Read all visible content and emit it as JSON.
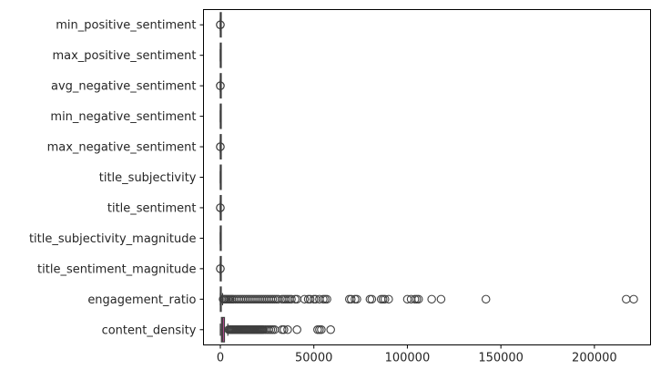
{
  "chart_data": {
    "type": "box",
    "orientation": "horizontal",
    "title": "",
    "xlabel": "",
    "ylabel": "",
    "xlim": [
      -9000,
      230000
    ],
    "x_ticks": [
      0,
      50000,
      100000,
      150000,
      200000
    ],
    "x_tick_labels": [
      "0",
      "50000",
      "100000",
      "150000",
      "200000"
    ],
    "grid": false,
    "categories": [
      "min_positive_sentiment",
      "max_positive_sentiment",
      "avg_negative_sentiment",
      "min_negative_sentiment",
      "max_negative_sentiment",
      "title_subjectivity",
      "title_sentiment",
      "title_subjectivity_magnitude",
      "title_sentiment_magnitude",
      "engagement_ratio",
      "content_density"
    ],
    "colors": [
      "#4c72b0",
      "#dd8452",
      "#55a868",
      "#c44e52",
      "#8172b3",
      "#937860",
      "#da8bc3",
      "#8c8c8c",
      "#ccb974",
      "#64b5cd",
      "#c44e9a"
    ],
    "boxes": [
      {
        "q1": 0,
        "median": 0,
        "q3": 0,
        "whisker_low": 0,
        "whisker_high": 1,
        "outliers": [
          -1,
          1
        ]
      },
      {
        "q1": 0,
        "median": 1,
        "q3": 1,
        "whisker_low": 0,
        "whisker_high": 1,
        "outliers": []
      },
      {
        "q1": 0,
        "median": 0,
        "q3": 0,
        "whisker_low": 0,
        "whisker_high": 0,
        "outliers": [
          -1,
          0
        ]
      },
      {
        "q1": -1,
        "median": 0,
        "q3": 0,
        "whisker_low": -1,
        "whisker_high": 0,
        "outliers": []
      },
      {
        "q1": 0,
        "median": 0,
        "q3": 0,
        "whisker_low": -1,
        "whisker_high": 0,
        "outliers": [
          -1,
          0
        ]
      },
      {
        "q1": 0,
        "median": 0,
        "q3": 1,
        "whisker_low": 0,
        "whisker_high": 1,
        "outliers": []
      },
      {
        "q1": 0,
        "median": 0,
        "q3": 0,
        "whisker_low": 0,
        "whisker_high": 0,
        "outliers": [
          -1,
          1
        ]
      },
      {
        "q1": 0,
        "median": 0,
        "q3": 0,
        "whisker_low": 0,
        "whisker_high": 1,
        "outliers": []
      },
      {
        "q1": 0,
        "median": 0,
        "q3": 0,
        "whisker_low": 0,
        "whisker_high": 0,
        "outliers": [
          0,
          1
        ]
      },
      {
        "q1": 0,
        "median": 150,
        "q3": 450,
        "whisker_low": 0,
        "whisker_high": 1200,
        "outliers": [
          1500,
          2000,
          2600,
          3200,
          3900,
          4600,
          5300,
          6100,
          7000,
          8000,
          9000,
          10000,
          11000,
          12000,
          13000,
          14000,
          15000,
          16000,
          17000,
          18000,
          19000,
          20000,
          21000,
          22000,
          23000,
          24000,
          25000,
          26000,
          27000,
          28000,
          29000,
          30000,
          31000,
          33000,
          34000,
          35000,
          36000,
          37000,
          38000,
          40000,
          41000,
          45000,
          47000,
          48000,
          50000,
          51000,
          53000,
          55000,
          56000,
          57000,
          69000,
          70000,
          72000,
          73000,
          80000,
          81000,
          86000,
          87000,
          88000,
          90000,
          100000,
          102000,
          104000,
          105000,
          106000,
          113000,
          118000,
          142000,
          217000,
          221000
        ]
      },
      {
        "q1": 600,
        "median": 1200,
        "q3": 2200,
        "whisker_low": 0,
        "whisker_high": 4000,
        "outliers": [
          4500,
          5000,
          5500,
          6000,
          6500,
          7000,
          7500,
          8000,
          8500,
          9000,
          9500,
          10000,
          10500,
          11000,
          11500,
          12000,
          12500,
          13000,
          13500,
          14000,
          14500,
          15000,
          15500,
          16000,
          16500,
          17000,
          17500,
          18000,
          18500,
          19000,
          19500,
          20000,
          20500,
          21000,
          21500,
          22000,
          22500,
          23000,
          24000,
          25000,
          26000,
          27000,
          28000,
          29000,
          33000,
          34000,
          36000,
          41000,
          52000,
          53000,
          54000,
          59000
        ]
      }
    ]
  }
}
